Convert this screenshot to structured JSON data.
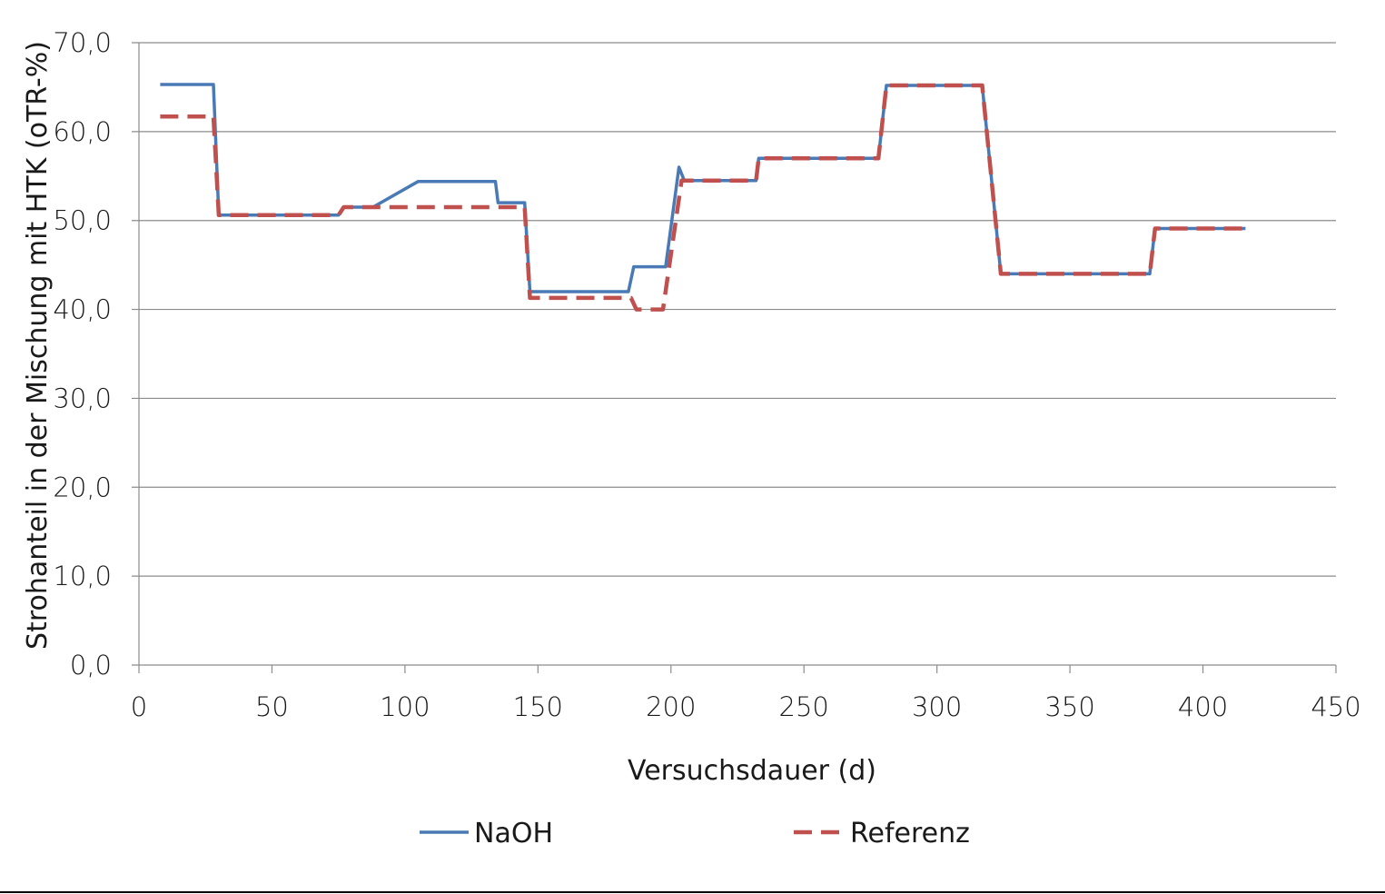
{
  "chart_data": {
    "type": "line",
    "title": "",
    "xlabel": "Versuchsdauer (d)",
    "ylabel": "Strohanteil in der Mischung mit HTK (oTR-%)",
    "xlim": [
      0,
      450
    ],
    "ylim": [
      0,
      70
    ],
    "x_ticks": [
      0,
      50,
      100,
      150,
      200,
      250,
      300,
      350,
      400,
      450
    ],
    "x_tick_labels": [
      "0",
      "50",
      "100",
      "150",
      "200",
      "250",
      "300",
      "350",
      "400",
      "450"
    ],
    "y_ticks": [
      0,
      10,
      20,
      30,
      40,
      50,
      60,
      70
    ],
    "y_tick_labels": [
      "0,0",
      "10,0",
      "20,0",
      "30,0",
      "40,0",
      "50,0",
      "60,0",
      "70,0"
    ],
    "grid": "horizontal",
    "legend_position": "bottom",
    "series": [
      {
        "name": "NaOH",
        "color": "#4a7ab5",
        "style": "solid",
        "points": [
          [
            8,
            65.3
          ],
          [
            28,
            65.3
          ],
          [
            30,
            50.6
          ],
          [
            75,
            50.6
          ],
          [
            77,
            51.5
          ],
          [
            88,
            51.5
          ],
          [
            105,
            54.4
          ],
          [
            134,
            54.4
          ],
          [
            135,
            52.0
          ],
          [
            145,
            52.0
          ],
          [
            147,
            42.0
          ],
          [
            184,
            42.0
          ],
          [
            186,
            44.8
          ],
          [
            198,
            44.8
          ],
          [
            203,
            56.0
          ],
          [
            205,
            54.5
          ],
          [
            232,
            54.5
          ],
          [
            233,
            57.0
          ],
          [
            278,
            57.0
          ],
          [
            281,
            65.2
          ],
          [
            317,
            65.2
          ],
          [
            324,
            44.0
          ],
          [
            380,
            44.0
          ],
          [
            382,
            49.1
          ],
          [
            416,
            49.1
          ]
        ]
      },
      {
        "name": "Referenz",
        "color": "#c0504d",
        "style": "dashed",
        "points": [
          [
            8,
            61.7
          ],
          [
            28,
            61.7
          ],
          [
            30,
            50.6
          ],
          [
            75,
            50.6
          ],
          [
            77,
            51.5
          ],
          [
            145,
            51.5
          ],
          [
            147,
            41.3
          ],
          [
            185,
            41.3
          ],
          [
            187,
            40.0
          ],
          [
            197,
            40.0
          ],
          [
            204,
            54.5
          ],
          [
            232,
            54.5
          ],
          [
            233,
            57.0
          ],
          [
            278,
            57.0
          ],
          [
            281,
            65.2
          ],
          [
            317,
            65.2
          ],
          [
            324,
            44.0
          ],
          [
            380,
            44.0
          ],
          [
            382,
            49.1
          ],
          [
            416,
            49.1
          ]
        ]
      }
    ]
  }
}
